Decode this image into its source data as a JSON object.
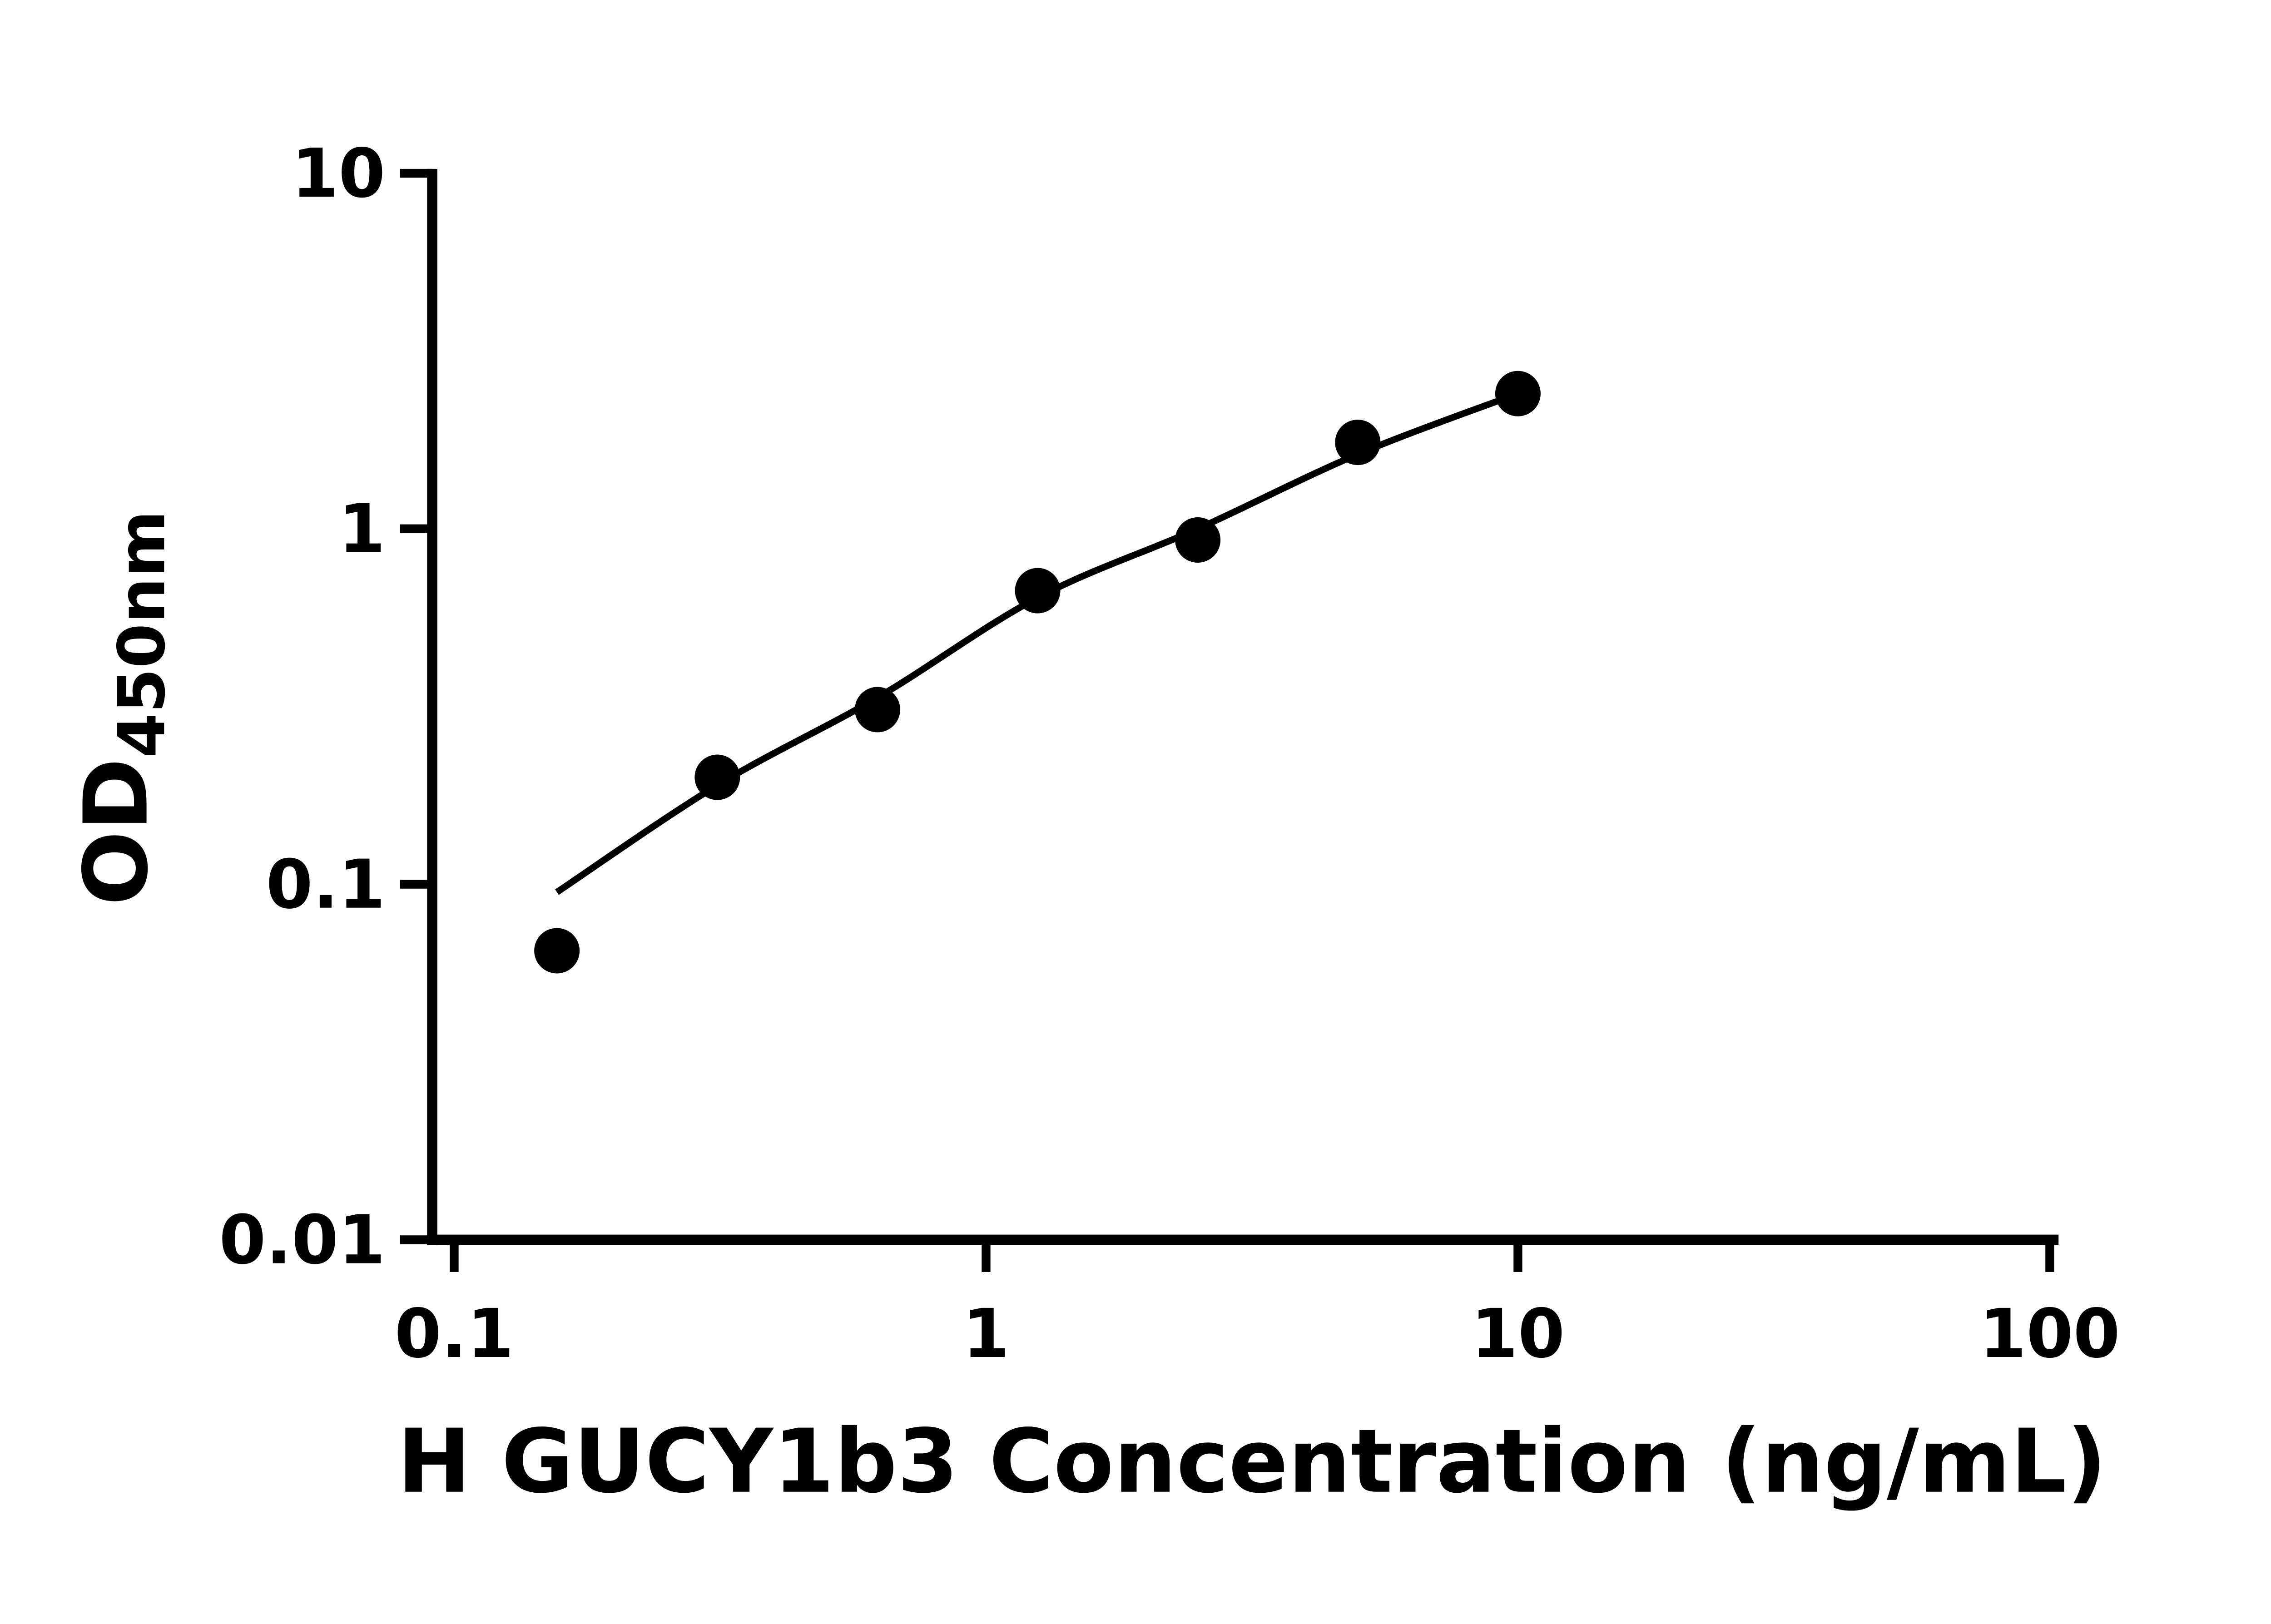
{
  "page": {
    "background_color": "#ffffff"
  },
  "chart_data": {
    "type": "scatter",
    "title": "",
    "xlabel": "H GUCY1b3 Concentration (ng/mL)",
    "ylabel": "OD",
    "ylabel_subscript": "450nm",
    "x_scale": "log",
    "y_scale": "log",
    "xlim": [
      0.1,
      100
    ],
    "ylim": [
      0.01,
      10
    ],
    "x_ticks": [
      0.1,
      1,
      10,
      100
    ],
    "x_tick_labels": [
      "0.1",
      "1",
      "10",
      "100"
    ],
    "y_ticks": [
      0.01,
      0.1,
      1,
      10
    ],
    "y_tick_labels": [
      "0.01",
      "0.1",
      "1",
      "10"
    ],
    "grid": false,
    "legend": "none",
    "axis_color": "#000000",
    "series": [
      {
        "name": "standard-points",
        "marker": "filled-circle",
        "color": "#000000",
        "x": [
          0.156,
          0.3125,
          0.625,
          1.25,
          2.5,
          5,
          10
        ],
        "y": [
          0.065,
          0.2,
          0.31,
          0.67,
          0.93,
          1.75,
          2.4
        ]
      }
    ],
    "fit_curve": {
      "name": "4pl-fit-curve",
      "color": "#000000",
      "x": [
        0.156,
        0.3125,
        0.625,
        1.25,
        2.5,
        5,
        10
      ],
      "y": [
        0.095,
        0.19,
        0.335,
        0.64,
        1.0,
        1.62,
        2.4
      ]
    }
  }
}
